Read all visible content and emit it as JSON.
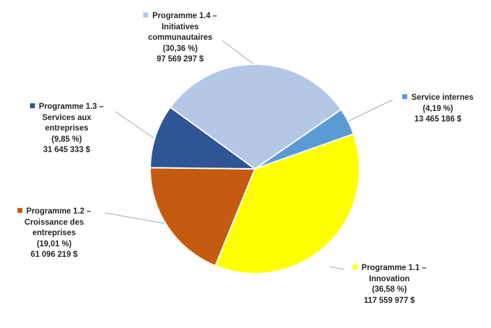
{
  "chart_data": {
    "type": "pie",
    "slices": [
      {
        "name": "Programme 1.1 – Innovation",
        "label_lines": [
          "Programme 1.1 –",
          "Innovation"
        ],
        "percent_label": "(36,58 %)",
        "amount_label": "117 559 977 $",
        "value": 117559977,
        "percent": 36.58,
        "color": "#FFFF00"
      },
      {
        "name": "Programme 1.2 – Croissance des entreprises",
        "label_lines": [
          "Programme 1.2 –",
          "Croissance des",
          "entreprises"
        ],
        "percent_label": "(19,01 %)",
        "amount_label": "61 096 219 $",
        "value": 61096219,
        "percent": 19.01,
        "color": "#C55A11"
      },
      {
        "name": "Programme 1.3 – Services aux entreprises",
        "label_lines": [
          "Programme 1.3 –",
          "Services aux",
          "entreprises"
        ],
        "percent_label": "(9,85 %)",
        "amount_label": "31 645 333 $",
        "value": 31645333,
        "percent": 9.85,
        "color": "#2F5597"
      },
      {
        "name": "Programme 1.4 – Initiatives communautaires",
        "label_lines": [
          "Programme 1.4 –",
          "Initiatives",
          "communautaires"
        ],
        "percent_label": "(30,36 %)",
        "amount_label": "97 569 297 $",
        "value": 97569297,
        "percent": 30.36,
        "color": "#B4C7E7"
      },
      {
        "name": "Service internes",
        "label_lines": [
          "Service internes"
        ],
        "percent_label": "(4,19 %)",
        "amount_label": "13 465 186 $",
        "value": 13465186,
        "percent": 4.19,
        "color": "#5B9BD5"
      }
    ],
    "legend": "none",
    "data_labels": "outside-with-leader-lines"
  }
}
